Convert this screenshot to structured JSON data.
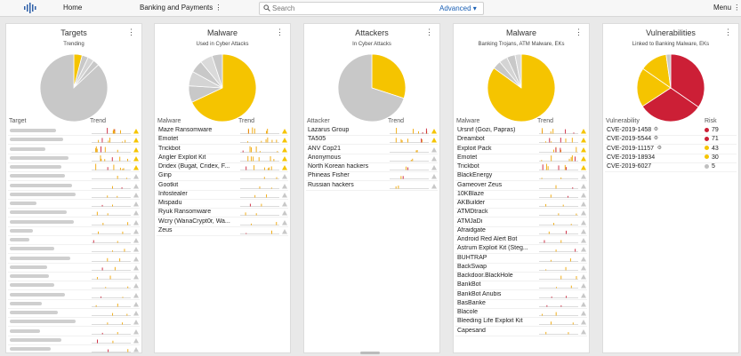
{
  "topbar": {
    "nav": [
      "Home",
      "Banking and Payments ⋮"
    ],
    "search_placeholder": "Search",
    "advanced_label": "Advanced ▾",
    "menu_label": "Menu ⋮",
    "logo_icon": "bars-logo-icon"
  },
  "colors": {
    "yellow": "#f5c400",
    "grey": "#c8c8c8",
    "red": "#cc1f36",
    "orange": "#f0a500",
    "light_yellow": "#f9d83a",
    "neutral_dot": "#c0c0c0"
  },
  "cards": [
    {
      "title": "Targets",
      "subtitle": "Trending",
      "col1": "Target",
      "col2": "Trend",
      "pie": {
        "values": [
          4,
          3,
          3,
          3,
          87
        ],
        "colors": [
          "#f5c400",
          "#c8c8c8",
          "#d4d4d4",
          "#c8c8c8",
          "#c8c8c8"
        ]
      },
      "rows": [
        {
          "name": "",
          "blur": 52,
          "trend": "yellow"
        },
        {
          "name": "",
          "blur": 60,
          "trend": "yellow"
        },
        {
          "name": "",
          "blur": 40,
          "trend": "yellow"
        },
        {
          "name": "",
          "blur": 66,
          "trend": "yellow"
        },
        {
          "name": "",
          "blur": 58,
          "trend": "yellow"
        },
        {
          "name": "",
          "blur": 62,
          "trend": "grey"
        },
        {
          "name": "",
          "blur": 70,
          "trend": "grey"
        },
        {
          "name": "",
          "blur": 74,
          "trend": "grey"
        },
        {
          "name": "",
          "blur": 30,
          "trend": "grey"
        },
        {
          "name": "",
          "blur": 64,
          "trend": "grey"
        },
        {
          "name": "",
          "blur": 72,
          "trend": "grey"
        },
        {
          "name": "",
          "blur": 26,
          "trend": "grey"
        },
        {
          "name": "",
          "blur": 22,
          "trend": "grey"
        },
        {
          "name": "",
          "blur": 50,
          "trend": "grey"
        },
        {
          "name": "",
          "blur": 68,
          "trend": "grey"
        },
        {
          "name": "",
          "blur": 42,
          "trend": "grey"
        },
        {
          "name": "",
          "blur": 44,
          "trend": "grey"
        },
        {
          "name": "",
          "blur": 50,
          "trend": "grey"
        },
        {
          "name": "",
          "blur": 62,
          "trend": "grey"
        },
        {
          "name": "",
          "blur": 36,
          "trend": "grey"
        },
        {
          "name": "",
          "blur": 54,
          "trend": "grey"
        },
        {
          "name": "",
          "blur": 74,
          "trend": "grey"
        },
        {
          "name": "",
          "blur": 34,
          "trend": "grey"
        },
        {
          "name": "",
          "blur": 58,
          "trend": "grey"
        },
        {
          "name": "",
          "blur": 46,
          "trend": "grey"
        }
      ]
    },
    {
      "title": "Malware",
      "subtitle": "Used in Cyber Attacks",
      "col1": "Malware",
      "col2": "Trend",
      "pie": {
        "values": [
          68,
          8,
          7,
          6,
          6,
          5
        ],
        "colors": [
          "#f5c400",
          "#c8c8c8",
          "#d4d4d4",
          "#c8c8c8",
          "#dadada",
          "#c8c8c8"
        ]
      },
      "rows": [
        {
          "name": "Maze Ransomware",
          "trend": "yellow"
        },
        {
          "name": "Emotet",
          "trend": "yellow"
        },
        {
          "name": "Trickbot",
          "trend": "yellow"
        },
        {
          "name": "Angler Exploit Kit",
          "trend": "yellow"
        },
        {
          "name": "Dridex (Bugat, Cridex, F...",
          "trend": "yellow"
        },
        {
          "name": "Ginp",
          "trend": "grey"
        },
        {
          "name": "Gootkit",
          "trend": "grey"
        },
        {
          "name": "Infostealer",
          "trend": "grey"
        },
        {
          "name": "Mispadu",
          "trend": "grey"
        },
        {
          "name": "Ryuk Ransomware",
          "trend": "grey"
        },
        {
          "name": "Wcry (WanaCrypt0r, Wa...",
          "trend": "grey"
        },
        {
          "name": "Zeus",
          "trend": "grey"
        }
      ]
    },
    {
      "title": "Attackers",
      "subtitle": "In Cyber Attacks",
      "col1": "Attacker",
      "col2": "Trend",
      "pie": {
        "values": [
          30,
          70
        ],
        "colors": [
          "#f5c400",
          "#c8c8c8"
        ]
      },
      "rows": [
        {
          "name": "Lazarus Group",
          "trend": "yellow"
        },
        {
          "name": "TA505",
          "trend": "yellow"
        },
        {
          "name": "ANV Cop21",
          "trend": "grey"
        },
        {
          "name": "Anonymous",
          "trend": "grey"
        },
        {
          "name": "North Korean hackers",
          "trend": "grey"
        },
        {
          "name": "Phineas Fisher",
          "trend": "grey"
        },
        {
          "name": "Russian hackers",
          "trend": "grey"
        }
      ]
    },
    {
      "title": "Malware",
      "subtitle": "Banking Trojans, ATM Malware, EKs",
      "col1": "Malware",
      "col2": "Trend",
      "pie": {
        "values": [
          85,
          4,
          4,
          4,
          3
        ],
        "colors": [
          "#f5c400",
          "#c8c8c8",
          "#d4d4d4",
          "#c8c8c8",
          "#dadada"
        ]
      },
      "rows": [
        {
          "name": "Ursnif (Gozi, Papras)",
          "trend": "yellow"
        },
        {
          "name": "Dreambot",
          "trend": "yellow"
        },
        {
          "name": "Exploit Pack",
          "trend": "yellow"
        },
        {
          "name": "Emotet",
          "trend": "yellow"
        },
        {
          "name": "Trickbot",
          "trend": "yellow"
        },
        {
          "name": "BlackEnergy",
          "trend": "grey"
        },
        {
          "name": "Gameover Zeus",
          "trend": "grey"
        },
        {
          "name": "10KBlaze",
          "trend": "grey"
        },
        {
          "name": "AKBuilder",
          "trend": "grey"
        },
        {
          "name": "ATMDtrack",
          "trend": "grey"
        },
        {
          "name": "ATMJaDi",
          "trend": "grey"
        },
        {
          "name": "Afraidgate",
          "trend": "grey"
        },
        {
          "name": "Android Red Alert Bot",
          "trend": "grey"
        },
        {
          "name": "Astrum Exploit Kit (Steg...",
          "trend": "grey"
        },
        {
          "name": "BUHTRAP",
          "trend": "grey"
        },
        {
          "name": "BackSwap",
          "trend": "grey"
        },
        {
          "name": "Backdoor.BlackHole",
          "trend": "grey"
        },
        {
          "name": "BankBot",
          "trend": "grey"
        },
        {
          "name": "BankBot Anubis",
          "trend": "grey"
        },
        {
          "name": "BasBanke",
          "trend": "grey"
        },
        {
          "name": "Blacole",
          "trend": "grey"
        },
        {
          "name": "Bleeding Life Exploit Kit",
          "trend": "grey"
        },
        {
          "name": "Capesand",
          "trend": "grey"
        }
      ]
    },
    {
      "title": "Vulnerabilities",
      "subtitle": "Linked to Banking Malware, EKs",
      "col1": "Vulnerability",
      "col2": "Risk",
      "pie": {
        "values": [
          79,
          71,
          43,
          30,
          5
        ],
        "colors": [
          "#cc1f36",
          "#cc1f36",
          "#f5c400",
          "#f5c400",
          "#c8c8c8"
        ]
      },
      "rows": [
        {
          "name": "CVE-2019-1458",
          "gear": true,
          "risk": "79",
          "color": "#cc1f36"
        },
        {
          "name": "CVE-2019-5544",
          "gear": true,
          "risk": "71",
          "color": "#cc1f36"
        },
        {
          "name": "CVE-2019-11157",
          "gear": true,
          "risk": "43",
          "color": "#f5c400"
        },
        {
          "name": "CVE-2019-18934",
          "gear": false,
          "risk": "30",
          "color": "#f5c400"
        },
        {
          "name": "CVE-2019-6027",
          "gear": false,
          "risk": "5",
          "color": "#c0c0c0"
        }
      ]
    }
  ]
}
